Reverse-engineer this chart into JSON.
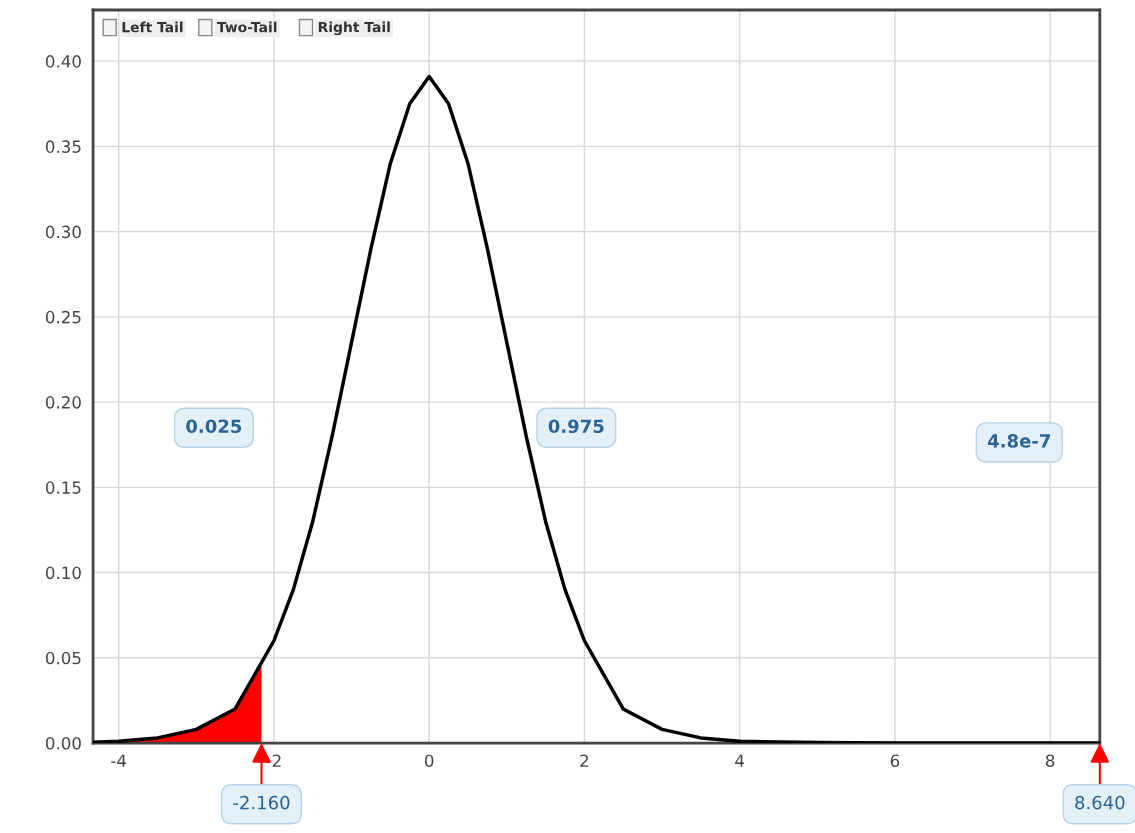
{
  "chart_data": {
    "type": "line",
    "xlim": [
      -4.33,
      8.64
    ],
    "ylim": [
      0,
      0.43
    ],
    "xticks": [
      -4,
      -2,
      0,
      2,
      4,
      6,
      8
    ],
    "yticks": [
      {
        "value": 0,
        "label": "0.00"
      },
      {
        "value": 0.05,
        "label": "0.05"
      },
      {
        "value": 0.1,
        "label": "0.10"
      },
      {
        "value": 0.15,
        "label": "0.15"
      },
      {
        "value": 0.2,
        "label": "0.20"
      },
      {
        "value": 0.25,
        "label": "0.25"
      },
      {
        "value": 0.3,
        "label": "0.30"
      },
      {
        "value": 0.35,
        "label": "0.35"
      },
      {
        "value": 0.4,
        "label": "0.40"
      }
    ],
    "grid": true,
    "legend": false,
    "marker": "none",
    "line_style": "solid",
    "series": [
      {
        "type": "area",
        "color": "#ff0000",
        "x": [
          -4.33,
          -4,
          -3.5,
          -3,
          -2.5,
          -2.25,
          -2.16
        ],
        "values": [
          0.0005,
          0.001,
          0.003,
          0.008,
          0.02,
          0.04,
          0.045
        ]
      },
      {
        "color": "#000000",
        "x": [
          -4.33,
          -4,
          -3.5,
          -3,
          -2.5,
          -2.25,
          -2,
          -1.75,
          -1.5,
          -1.25,
          -1,
          -0.75,
          -0.5,
          -0.25,
          0,
          0.25,
          0.5,
          0.75,
          1,
          1.25,
          1.5,
          1.75,
          2,
          2.25,
          2.5,
          3,
          3.5,
          4,
          5,
          6,
          8.64
        ],
        "values": [
          0.0005,
          0.001,
          0.003,
          0.008,
          0.02,
          0.04,
          0.06,
          0.09,
          0.13,
          0.18,
          0.235,
          0.29,
          0.34,
          0.375,
          0.391,
          0.375,
          0.34,
          0.29,
          0.235,
          0.18,
          0.13,
          0.09,
          0.06,
          0.04,
          0.02,
          0.008,
          0.003,
          0.001,
          0.0003,
          0.0001,
          0
        ]
      }
    ],
    "annotations": [
      "Left Tail",
      "Two-Tail",
      "Right Tail",
      "0.025",
      "0.975",
      "4.8e-7",
      {
        "text": "-2.160",
        "x": -2.16,
        "y": 0
      },
      {
        "text": "8.640",
        "x": 8.64,
        "y": 0
      }
    ]
  }
}
